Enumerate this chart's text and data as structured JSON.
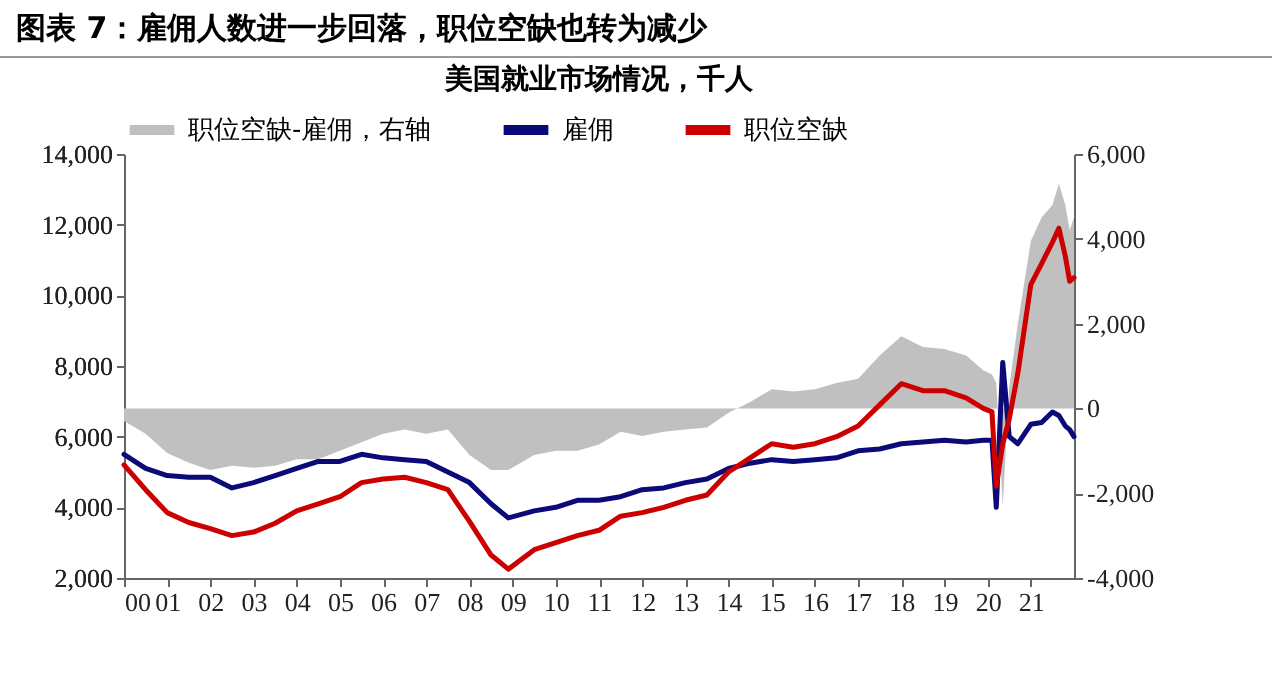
{
  "chart_data": {
    "type": "line",
    "title": "图表 7：雇佣人数进一步回落，职位空缺也转为减少",
    "subtitle": "美国就业市场情况，千人",
    "x": [
      2000,
      2000.5,
      2001,
      2001.5,
      2002,
      2002.5,
      2003,
      2003.5,
      2004,
      2004.5,
      2005,
      2005.5,
      2006,
      2006.5,
      2007,
      2007.5,
      2008,
      2008.5,
      2008.9,
      2009.5,
      2010,
      2010.5,
      2011,
      2011.5,
      2012,
      2012.5,
      2013,
      2013.5,
      2014,
      2014.5,
      2015,
      2015.5,
      2016,
      2016.5,
      2017,
      2017.5,
      2018,
      2018.5,
      2019,
      2019.5,
      2019.9,
      2020.1,
      2020.2,
      2020.35,
      2020.5,
      2020.7,
      2021,
      2021.25,
      2021.5,
      2021.65,
      2021.8,
      2021.9,
      2022
    ],
    "series": [
      {
        "name": "职位空缺-雇佣，右轴",
        "type": "area",
        "axis": "y2",
        "color": "#c0c0c0",
        "values": [
          -300,
          -600,
          -1050,
          -1280,
          -1450,
          -1350,
          -1400,
          -1350,
          -1200,
          -1200,
          -1000,
          -800,
          -600,
          -500,
          -600,
          -500,
          -1100,
          -1450,
          -1450,
          -1100,
          -1000,
          -1000,
          -850,
          -550,
          -650,
          -550,
          -500,
          -450,
          -100,
          150,
          450,
          400,
          450,
          600,
          700,
          1250,
          1700,
          1450,
          1400,
          1250,
          900,
          800,
          600,
          -2300,
          500,
          2000,
          3950,
          4500,
          4800,
          5300,
          4800,
          4200,
          4500
        ]
      },
      {
        "name": "雇佣",
        "color": "#0a0a78",
        "values": [
          5500,
          5100,
          4900,
          4850,
          4850,
          4550,
          4700,
          4900,
          5100,
          5300,
          5300,
          5500,
          5400,
          5350,
          5300,
          5000,
          4700,
          4100,
          3700,
          3900,
          4000,
          4200,
          4200,
          4300,
          4500,
          4550,
          4700,
          4800,
          5100,
          5250,
          5350,
          5300,
          5350,
          5400,
          5600,
          5650,
          5800,
          5850,
          5900,
          5850,
          5900,
          5900,
          4000,
          8100,
          6000,
          5800,
          6350,
          6400,
          6700,
          6600,
          6300,
          6200,
          6000
        ]
      },
      {
        "name": "职位空缺",
        "color": "#cc0000",
        "values": [
          5200,
          4500,
          3850,
          3570,
          3400,
          3200,
          3300,
          3550,
          3900,
          4100,
          4300,
          4700,
          4800,
          4850,
          4700,
          4500,
          3600,
          2650,
          2250,
          2800,
          3000,
          3200,
          3350,
          3750,
          3850,
          4000,
          4200,
          4350,
          5000,
          5400,
          5800,
          5700,
          5800,
          6000,
          6300,
          6900,
          7500,
          7300,
          7300,
          7100,
          6800,
          6700,
          4600,
          5800,
          6500,
          7800,
          10300,
          10900,
          11500,
          11900,
          11100,
          10400,
          10500
        ]
      }
    ],
    "xlim": [
      2000,
      2022
    ],
    "xticks": [
      {
        "value": 2000,
        "label": "00"
      },
      {
        "value": 2001,
        "label": "01"
      },
      {
        "value": 2002,
        "label": "02"
      },
      {
        "value": 2003,
        "label": "03"
      },
      {
        "value": 2004,
        "label": "04"
      },
      {
        "value": 2005,
        "label": "05"
      },
      {
        "value": 2006,
        "label": "06"
      },
      {
        "value": 2007,
        "label": "07"
      },
      {
        "value": 2008,
        "label": "08"
      },
      {
        "value": 2009,
        "label": "09"
      },
      {
        "value": 2010,
        "label": "10"
      },
      {
        "value": 2011,
        "label": "11"
      },
      {
        "value": 2012,
        "label": "12"
      },
      {
        "value": 2013,
        "label": "13"
      },
      {
        "value": 2014,
        "label": "14"
      },
      {
        "value": 2015,
        "label": "15"
      },
      {
        "value": 2016,
        "label": "16"
      },
      {
        "value": 2017,
        "label": "17"
      },
      {
        "value": 2018,
        "label": "18"
      },
      {
        "value": 2019,
        "label": "19"
      },
      {
        "value": 2020,
        "label": "20"
      },
      {
        "value": 2021,
        "label": "21"
      }
    ],
    "ylim": [
      2000,
      14000
    ],
    "yticks": [
      {
        "value": 2000,
        "label": "2,000"
      },
      {
        "value": 4000,
        "label": "4,000"
      },
      {
        "value": 6000,
        "label": "6,000"
      },
      {
        "value": 8000,
        "label": "8,000"
      },
      {
        "value": 10000,
        "label": "10,000"
      },
      {
        "value": 12000,
        "label": "12,000"
      },
      {
        "value": 14000,
        "label": "14,000"
      }
    ],
    "y2lim": [
      -4000,
      6000
    ],
    "y2ticks": [
      {
        "value": -4000,
        "label": "-4,000"
      },
      {
        "value": -2000,
        "label": "-2,000"
      },
      0,
      {
        "value": 2000,
        "label": "2,000"
      },
      {
        "value": 4000,
        "label": "4,000"
      },
      {
        "value": 6000,
        "label": "6,000"
      }
    ],
    "legend": "top",
    "grid": false,
    "marker": "none",
    "line_style": "solid"
  }
}
